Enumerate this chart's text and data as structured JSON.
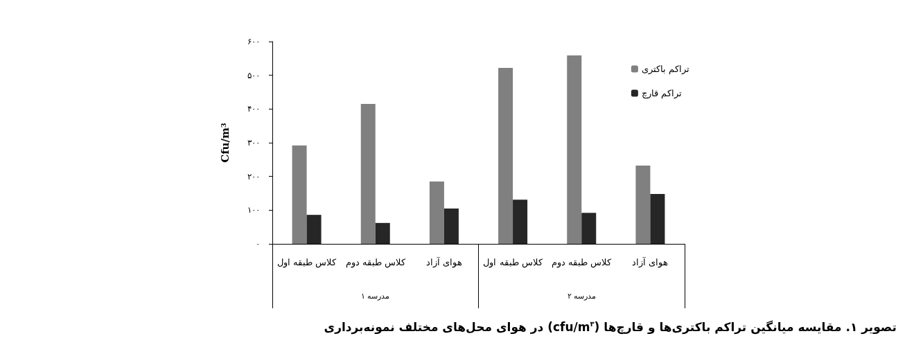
{
  "chart_data": {
    "type": "bar",
    "title": "تصویر ۱. مقایسه میانگین تراکم باکتری‌ها و قارچ‌ها (cfu/m$^{۳}$) در هوای محل‌های مختلف نمونه‌برداری",
    "ylabel": "Cfu/m$^{3}$",
    "categories": [
      "کلاس طبقه اول",
      "کلاس طبقه دوم",
      "هوای آزاد",
      "کلاس طبقه اول",
      "کلاس طبقه دوم",
      "هوای آزاد"
    ],
    "annotations": [
      "مدرسه ۱",
      "مدرسه ۲"
    ],
    "series": [
      {
        "name": "تراکم باکتری",
        "color": "#808080",
        "values": [
          292,
          415,
          185,
          522,
          559,
          232
        ]
      },
      {
        "name": "تراکم قارچ",
        "color": "#262626",
        "values": [
          86,
          62,
          105,
          131,
          92,
          148
        ]
      }
    ],
    "ylim": [
      0,
      600
    ],
    "yticks": [
      {
        "value": 0,
        "label": "۰"
      },
      {
        "value": 100,
        "label": "۱۰۰"
      },
      {
        "value": 200,
        "label": "۲۰۰"
      },
      {
        "value": 300,
        "label": "۳۰۰"
      },
      {
        "value": 400,
        "label": "۴۰۰"
      },
      {
        "value": 500,
        "label": "۵۰۰"
      },
      {
        "value": 600,
        "label": "۶۰۰"
      }
    ],
    "legend": "top right",
    "grid": false
  }
}
